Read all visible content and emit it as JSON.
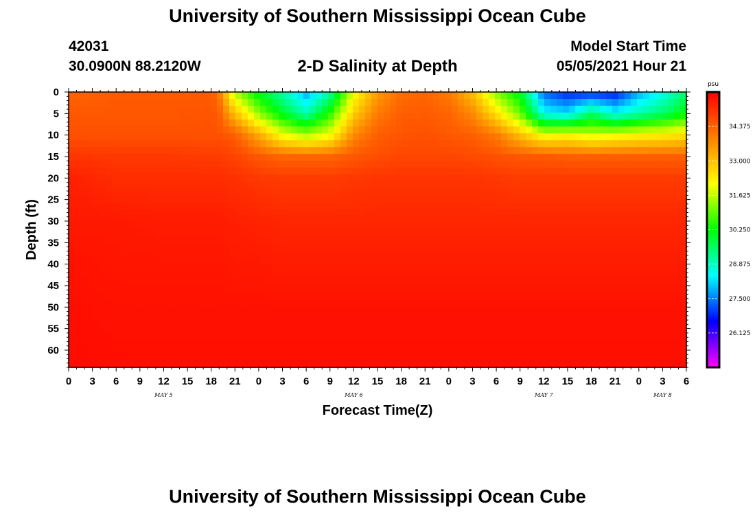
{
  "header": {
    "main_title": "University of Southern Mississippi Ocean Cube",
    "station_id": "42031",
    "coords": "30.0900N  88.2120W",
    "plot_title": "2-D Salinity at Depth",
    "start_label": "Model Start Time",
    "start_value": "05/05/2021 Hour 21"
  },
  "footer": {
    "title": "University of Southern Mississippi Ocean Cube"
  },
  "chart_data": {
    "type": "heatmap",
    "title": "2-D Salinity at Depth",
    "xlabel": "Forecast Time(Z)",
    "ylabel": "Depth (ft)",
    "units": "psu",
    "x_range_hours": [
      0,
      78
    ],
    "x_tick_labels": [
      "0",
      "3",
      "6",
      "9",
      "12",
      "15",
      "18",
      "21",
      "0",
      "3",
      "6",
      "9",
      "12",
      "15",
      "18",
      "21",
      "0",
      "3",
      "6",
      "9",
      "12",
      "15",
      "18",
      "21",
      "0",
      "3",
      "6"
    ],
    "day_labels": [
      {
        "label": "MAY 5",
        "at_hour": 12
      },
      {
        "label": "MAY 6",
        "at_hour": 36
      },
      {
        "label": "MAY 7",
        "at_hour": 60
      },
      {
        "label": "MAY 8",
        "at_hour": 75
      }
    ],
    "y_range_ft": [
      0,
      64
    ],
    "y_reversed": true,
    "y_ticks": [
      0,
      5,
      10,
      15,
      20,
      25,
      30,
      35,
      40,
      45,
      50,
      55,
      60
    ],
    "colorbar": {
      "min": 24.75,
      "max": 35.75,
      "ticks": [
        "26.125",
        "27.500",
        "28.875",
        "30.250",
        "31.625",
        "33.000",
        "34.375"
      ],
      "colors": [
        "#ff00ff",
        "#0000ff",
        "#00ffff",
        "#00ff00",
        "#ffff00",
        "#ff8000",
        "#ff0000"
      ]
    },
    "profiles_hour": [
      0,
      6,
      12,
      18,
      19,
      21,
      24,
      27,
      30,
      33,
      36,
      39,
      42,
      45,
      48,
      51,
      54,
      57,
      60,
      63,
      66,
      69,
      72,
      75,
      78
    ],
    "profiles_depth_ft": [
      0,
      5,
      10,
      15,
      20,
      30,
      40,
      50,
      64
    ],
    "profiles_salinity": [
      [
        34.3,
        34.5,
        34.6,
        35.0,
        35.3,
        35.4,
        35.5,
        35.55,
        35.6
      ],
      [
        34.45,
        34.5,
        34.6,
        34.95,
        35.1,
        35.4,
        35.45,
        35.5,
        35.55
      ],
      [
        34.45,
        34.5,
        34.6,
        34.95,
        35.1,
        35.35,
        35.45,
        35.5,
        35.55
      ],
      [
        34.45,
        34.55,
        34.6,
        34.9,
        35.1,
        35.35,
        35.45,
        35.5,
        35.55
      ],
      [
        34.0,
        34.4,
        34.6,
        34.9,
        35.1,
        35.35,
        35.45,
        35.5,
        35.55
      ],
      [
        31.5,
        33.0,
        34.4,
        34.8,
        35.05,
        35.3,
        35.4,
        35.5,
        35.55
      ],
      [
        30.0,
        31.3,
        33.3,
        34.5,
        34.95,
        35.25,
        35.4,
        35.5,
        35.55
      ],
      [
        29.0,
        30.0,
        32.0,
        34.3,
        34.9,
        35.2,
        35.35,
        35.5,
        35.55
      ],
      [
        27.8,
        29.0,
        31.5,
        34.3,
        34.9,
        35.2,
        35.35,
        35.5,
        35.55
      ],
      [
        29.0,
        30.5,
        32.0,
        34.3,
        34.9,
        35.2,
        35.35,
        35.5,
        35.55
      ],
      [
        32.0,
        32.8,
        33.8,
        34.5,
        34.95,
        35.2,
        35.35,
        35.5,
        35.55
      ],
      [
        33.5,
        34.0,
        34.4,
        34.65,
        35.0,
        35.2,
        35.35,
        35.5,
        35.55
      ],
      [
        34.2,
        34.4,
        34.55,
        34.75,
        35.0,
        35.2,
        35.35,
        35.5,
        35.55
      ],
      [
        34.3,
        34.45,
        34.6,
        34.75,
        35.0,
        35.2,
        35.35,
        35.5,
        35.55
      ],
      [
        34.0,
        34.3,
        34.5,
        34.75,
        35.0,
        35.2,
        35.35,
        35.5,
        35.55
      ],
      [
        33.0,
        33.8,
        34.4,
        34.7,
        35.0,
        35.2,
        35.35,
        35.5,
        35.55
      ],
      [
        31.2,
        32.5,
        34.0,
        34.6,
        34.95,
        35.2,
        35.35,
        35.5,
        35.55
      ],
      [
        30.0,
        31.0,
        33.0,
        34.5,
        34.9,
        35.2,
        35.35,
        35.5,
        35.55
      ],
      [
        27.3,
        28.5,
        32.0,
        34.5,
        34.9,
        35.2,
        35.35,
        35.5,
        35.55
      ],
      [
        26.8,
        28.2,
        32.2,
        34.4,
        34.9,
        35.2,
        35.35,
        35.5,
        35.55
      ],
      [
        26.8,
        29.5,
        31.8,
        34.4,
        34.9,
        35.2,
        35.35,
        35.5,
        35.55
      ],
      [
        26.7,
        28.5,
        32.0,
        34.4,
        34.9,
        35.2,
        35.35,
        35.5,
        35.55
      ],
      [
        27.8,
        29.0,
        32.2,
        34.4,
        34.9,
        35.2,
        35.35,
        35.5,
        35.55
      ],
      [
        28.5,
        29.5,
        32.3,
        34.4,
        34.9,
        35.2,
        35.35,
        35.5,
        35.55
      ],
      [
        29.5,
        30.2,
        32.5,
        34.4,
        34.9,
        35.2,
        35.35,
        35.5,
        35.55
      ]
    ]
  }
}
